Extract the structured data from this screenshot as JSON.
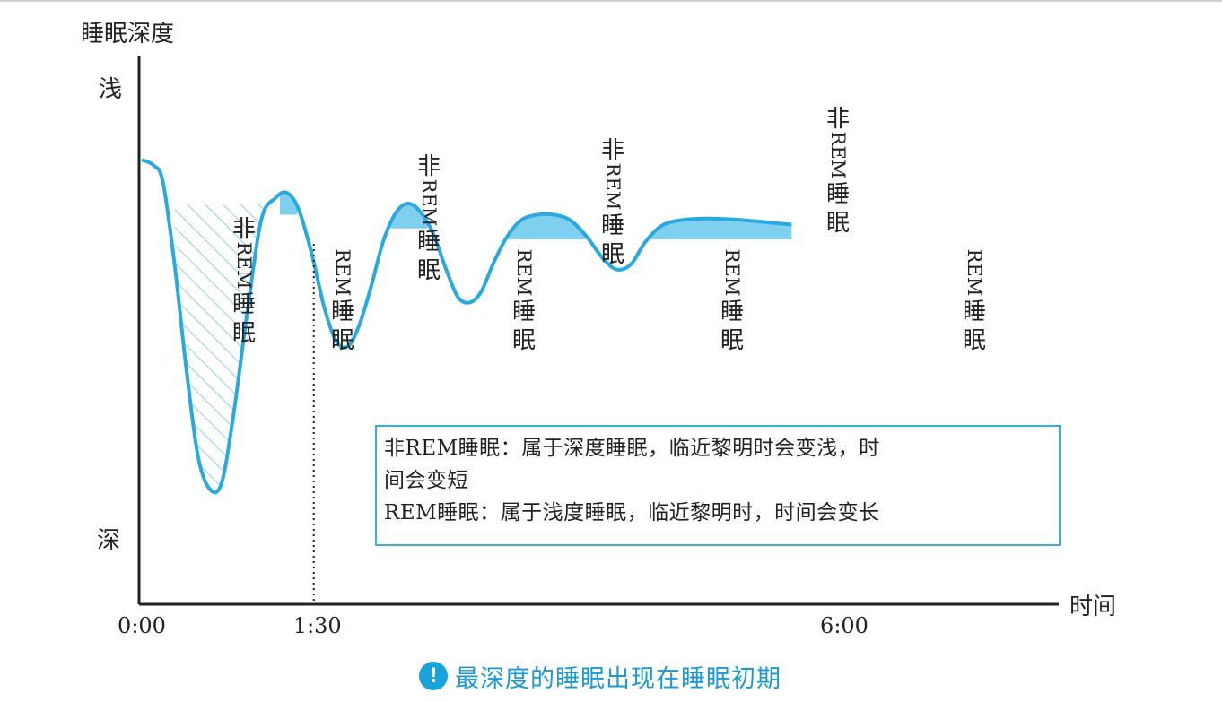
{
  "chart_data": {
    "type": "area",
    "title": "",
    "ylabel": "睡眠深度",
    "xlabel": "时间",
    "y_top_label": "浅",
    "y_bottom_label": "深",
    "x_tick_labels": [
      {
        "label": "0:00",
        "hours": 0
      },
      {
        "label": "1:30",
        "hours": 1.5
      },
      {
        "label": "6:00",
        "hours": 6.0
      }
    ],
    "xlim": [
      0,
      6.8
    ],
    "ylim": [
      0,
      100
    ],
    "y_meaning": "depth index: 100 = shallow, 0 = deep (no numeric ticks shown)",
    "series": [
      {
        "values_xy": [
          [
            0.0,
            81
          ],
          [
            0.1,
            80
          ],
          [
            0.18,
            77
          ],
          [
            0.28,
            62
          ],
          [
            0.38,
            43
          ],
          [
            0.48,
            27
          ],
          [
            0.58,
            21
          ],
          [
            0.68,
            22
          ],
          [
            0.78,
            34
          ],
          [
            0.9,
            53
          ],
          [
            1.02,
            70
          ],
          [
            1.14,
            74
          ],
          [
            1.24,
            75
          ],
          [
            1.34,
            72
          ],
          [
            1.45,
            64
          ],
          [
            1.56,
            54
          ],
          [
            1.66,
            48
          ],
          [
            1.76,
            47
          ],
          [
            1.86,
            51
          ],
          [
            1.96,
            58
          ],
          [
            2.06,
            66
          ],
          [
            2.16,
            71
          ],
          [
            2.26,
            73
          ],
          [
            2.36,
            72
          ],
          [
            2.48,
            68
          ],
          [
            2.6,
            61
          ],
          [
            2.7,
            56
          ],
          [
            2.8,
            55
          ],
          [
            2.9,
            57
          ],
          [
            3.0,
            62
          ],
          [
            3.12,
            67
          ],
          [
            3.24,
            70
          ],
          [
            3.38,
            71
          ],
          [
            3.52,
            71
          ],
          [
            3.66,
            70
          ],
          [
            3.8,
            67
          ],
          [
            3.94,
            63
          ],
          [
            4.06,
            61
          ],
          [
            4.18,
            62
          ],
          [
            4.3,
            66
          ],
          [
            4.44,
            69
          ],
          [
            4.6,
            70
          ],
          [
            4.8,
            70.3
          ],
          [
            5.0,
            70.2
          ],
          [
            5.2,
            69.9
          ],
          [
            5.4,
            69.5
          ],
          [
            5.55,
            69.2
          ]
        ]
      }
    ],
    "regions": [
      {
        "type": "non-rem",
        "label": "非REM睡眠",
        "x_range": [
          0.28,
          1.18
        ],
        "fill": "hatched",
        "threshold": 73
      },
      {
        "type": "rem",
        "label": "REM睡眠",
        "x_range": [
          1.18,
          1.33
        ],
        "fill": "solid",
        "threshold": 71
      },
      {
        "type": "non-rem",
        "label": "非REM睡眠",
        "x_range": [
          1.33,
          2.1
        ],
        "fill": "none"
      },
      {
        "type": "rem",
        "label": "REM睡眠",
        "x_range": [
          2.1,
          2.44
        ],
        "fill": "solid",
        "threshold": 68.5
      },
      {
        "type": "non-rem",
        "label": "非REM睡眠",
        "x_range": [
          2.44,
          3.06
        ],
        "fill": "none"
      },
      {
        "type": "rem",
        "label": "REM睡眠",
        "x_range": [
          3.06,
          3.8
        ],
        "fill": "solid",
        "threshold": 66.5
      },
      {
        "type": "non-rem",
        "label": "非REM睡眠",
        "x_range": [
          3.8,
          4.28
        ],
        "fill": "none"
      },
      {
        "type": "rem",
        "label": "REM睡眠",
        "x_range": [
          4.28,
          5.55
        ],
        "fill": "solid",
        "threshold": 66.5
      }
    ],
    "marker_line": {
      "x": 1.5,
      "style": "dotted"
    },
    "colors": {
      "curve": "#29a9df",
      "fill": "#7fd0ee",
      "hatch": "#8ccfea",
      "axis": "#222222"
    }
  },
  "legend": {
    "line1": "非REM睡眠：属于深度睡眠，临近黎明时会变浅，时",
    "line2": "间会变短",
    "line3": "REM睡眠：属于浅度睡眠，临近黎明时，时间会变长"
  },
  "caption": {
    "icon": "exclamation-icon",
    "text": "最深度的睡眠出现在睡眠初期"
  }
}
